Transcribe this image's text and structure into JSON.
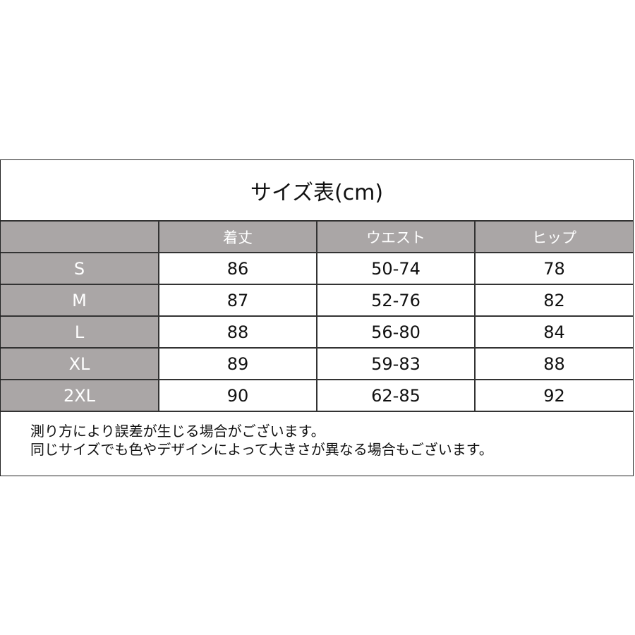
{
  "title": "サイズ表(cm)",
  "colors": {
    "header_bg": "#aaa6a6",
    "border": "#333333"
  },
  "table": {
    "headers": [
      "",
      "着丈",
      "ウエスト",
      "ヒップ"
    ],
    "rows": [
      {
        "size": "S",
        "values": [
          "86",
          "50-74",
          "78"
        ]
      },
      {
        "size": "M",
        "values": [
          "87",
          "52-76",
          "82"
        ]
      },
      {
        "size": "L",
        "values": [
          "88",
          "56-80",
          "84"
        ]
      },
      {
        "size": "XL",
        "values": [
          "89",
          "59-83",
          "88"
        ]
      },
      {
        "size": "2XL",
        "values": [
          "90",
          "62-85",
          "92"
        ]
      }
    ]
  },
  "notes": [
    "測り方により誤差が生じる場合がございます。",
    "同じサイズでも色やデザインによって大きさが異なる場合もございます。"
  ]
}
